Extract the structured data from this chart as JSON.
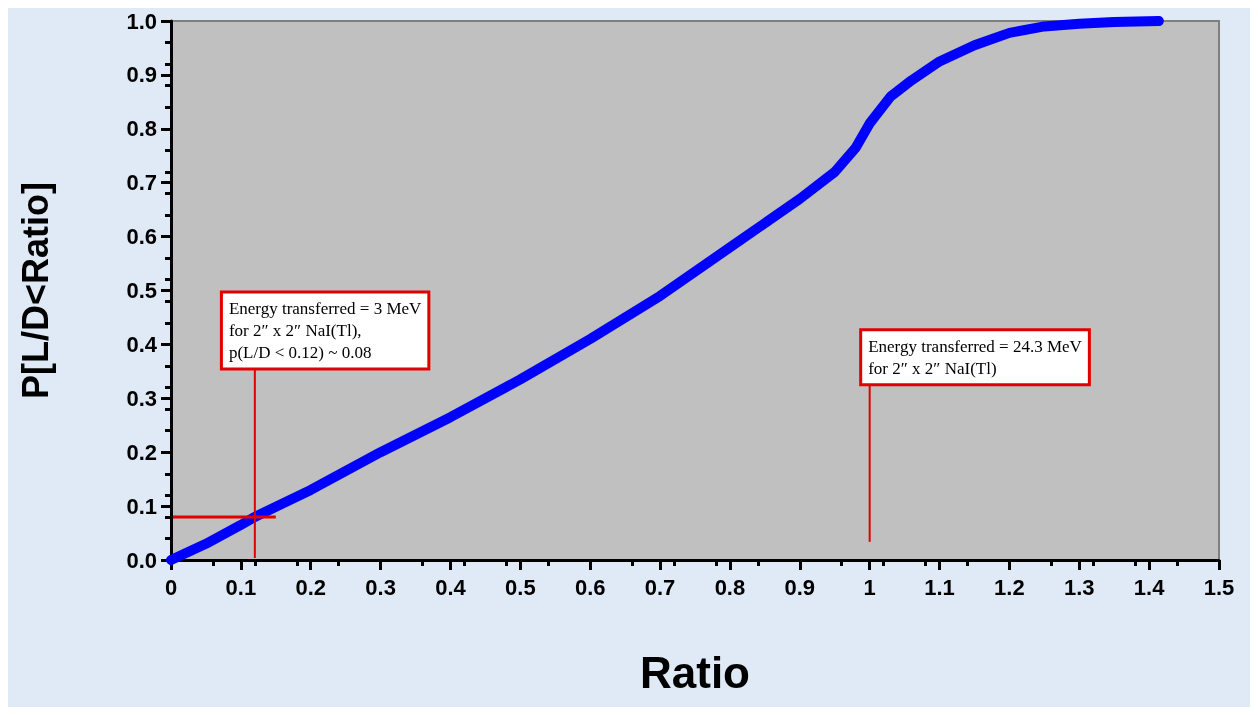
{
  "chart_data": {
    "type": "line",
    "xlabel": "Ratio",
    "ylabel": "P[L/D<Ratio]",
    "xlim": [
      0,
      1.5
    ],
    "xticks": [
      0,
      0.1,
      0.2,
      0.3,
      0.4,
      0.5,
      0.6,
      0.7,
      0.8,
      0.9,
      1,
      1.1,
      1.2,
      1.3,
      1.4,
      1.5
    ],
    "ylim": [
      0,
      1
    ],
    "yticks": [
      {
        "value": 0,
        "label": "0.0"
      },
      {
        "value": 0.1,
        "label": "0.1"
      },
      {
        "value": 0.2,
        "label": "0.2"
      },
      {
        "value": 0.3,
        "label": "0.3"
      },
      {
        "value": 0.4,
        "label": "0.4"
      },
      {
        "value": 0.5,
        "label": "0.5"
      },
      {
        "value": 0.6,
        "label": "0.6"
      },
      {
        "value": 0.7,
        "label": "0.7"
      },
      {
        "value": 0.8,
        "label": "0.8"
      },
      {
        "value": 0.9,
        "label": "0.9"
      },
      {
        "value": 1,
        "label": "1.0"
      }
    ],
    "grid": false,
    "line_style": "solid",
    "series": [
      {
        "color": "#0000ff",
        "x": [
          0,
          0.05,
          0.1,
          0.12,
          0.2,
          0.3,
          0.4,
          0.5,
          0.6,
          0.7,
          0.8,
          0.9,
          0.95,
          0.98,
          1.0,
          1.03,
          1.06,
          1.1,
          1.15,
          1.2,
          1.25,
          1.3,
          1.35,
          1.414
        ],
        "values": [
          0,
          0.03,
          0.065,
          0.08,
          0.13,
          0.2,
          0.265,
          0.335,
          0.41,
          0.49,
          0.58,
          0.67,
          0.72,
          0.765,
          0.81,
          0.86,
          0.89,
          0.925,
          0.955,
          0.978,
          0.99,
          0.995,
          0.998,
          1.0
        ]
      }
    ],
    "annotations": [
      "Energy transferred = 3 MeV\nfor 2″ x 2″ NaI(Tl),\np(L/D < 0.12) ~ 0.08",
      "Energy transferred = 24.3 MeV\nfor 2″ x 2″ NaI(Tl)"
    ],
    "ref_lines": [
      {
        "axis": "x",
        "value": 0.12,
        "color": "#e00000"
      },
      {
        "axis": "y",
        "value": 0.08,
        "color": "#e00000"
      },
      {
        "axis": "x",
        "value": 1,
        "color": "#e00000"
      }
    ]
  }
}
